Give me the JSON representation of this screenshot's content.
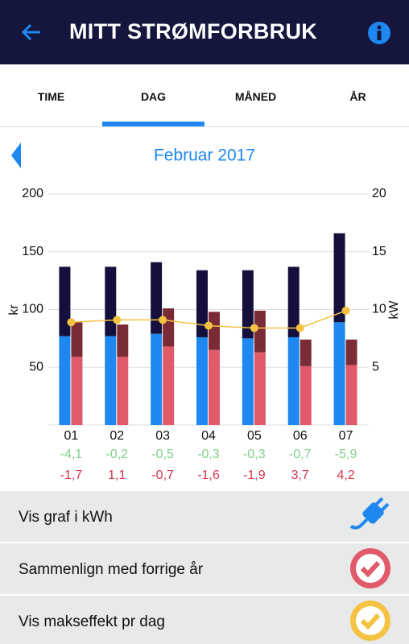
{
  "header": {
    "title": "MITT STRØMFORBRUK"
  },
  "tabs": {
    "items": [
      "TIME",
      "DAG",
      "MÅNED",
      "ÅR"
    ],
    "active": 1
  },
  "period": "Februar 2017",
  "chart_data": {
    "type": "bar",
    "categories": [
      "01",
      "02",
      "03",
      "04",
      "05",
      "06",
      "07"
    ],
    "ylabel": "kr",
    "y2label": "kW",
    "ylim": [
      0,
      200
    ],
    "yticks": [
      50,
      100,
      150,
      200
    ],
    "y2lim": [
      0,
      20
    ],
    "y2ticks": [
      5,
      10,
      15,
      20
    ],
    "grid": true,
    "series": [
      {
        "color": "#1e88f0",
        "stack": "a",
        "values": [
          77,
          77,
          79,
          76,
          75,
          76,
          89
        ]
      },
      {
        "color": "#150f3b",
        "stack": "a",
        "values": [
          60,
          60,
          62,
          58,
          59,
          61,
          77
        ]
      },
      {
        "color": "#e05a6a",
        "stack": "b",
        "values": [
          59,
          59,
          68,
          65,
          63,
          51,
          52
        ]
      },
      {
        "color": "#7b2b35",
        "stack": "b",
        "values": [
          30,
          28,
          33,
          33,
          36,
          23,
          22
        ]
      },
      {
        "color": "#f5c242",
        "type": "line",
        "axis": "y2",
        "values": [
          8.9,
          9.1,
          9.1,
          8.6,
          8.4,
          8.4,
          9.9
        ]
      }
    ],
    "value_rows": [
      {
        "color": "#7fcf8a",
        "labels": [
          "-4,1",
          "-0,2",
          "-0,5",
          "-0,3",
          "-0,3",
          "-0,7",
          "-5,9"
        ]
      },
      {
        "color": "#d9344b",
        "labels": [
          "-1,7",
          "1,1",
          "-0,7",
          "-1,6",
          "-1,9",
          "3,7",
          "4,2"
        ]
      }
    ]
  },
  "options": [
    "Vis graf i kWh",
    "Sammenlign med forrige år",
    "Vis makseffekt pr dag"
  ]
}
